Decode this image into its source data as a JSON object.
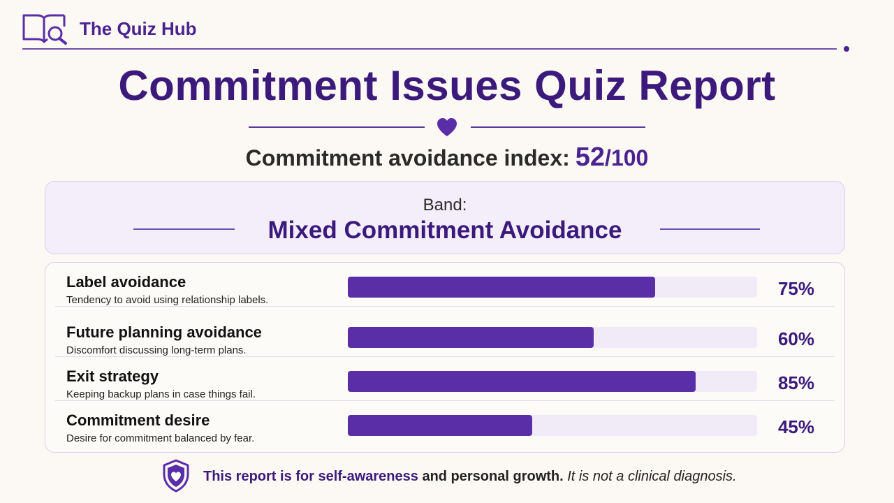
{
  "header": {
    "brand": "The Quiz Hub",
    "logo_icon": "book-magnifier-icon"
  },
  "title": "Commitment Issues Quiz Report",
  "title_icon": "heart-icon",
  "index": {
    "label": "Commitment avoidance index:",
    "score": "52",
    "denominator": "/100"
  },
  "band": {
    "label": "Band:",
    "value": "Mixed Commitment Avoidance"
  },
  "metrics": [
    {
      "name": "Label avoidance",
      "description": "Tendency to avoid using relationship labels.",
      "percent_label": "75%",
      "value": 75
    },
    {
      "name": "Future planning avoidance",
      "description": "Discomfort discussing long-term plans.",
      "percent_label": "60%",
      "value": 60
    },
    {
      "name": "Exit strategy",
      "description": "Keeping backup plans in case things fail.",
      "percent_label": "85%",
      "value": 85
    },
    {
      "name": "Commitment desire",
      "description": "Desire for commitment balanced by fear.",
      "percent_label": "45%",
      "value": 45
    }
  ],
  "footer": {
    "icon": "shield-heart-icon",
    "part1": "This report is for self-awareness",
    "part2": " and personal growth.",
    "part3": " It is not a clinical diagnosis."
  },
  "colors": {
    "accent": "#4b2391",
    "bar_fill": "#5a2ea6",
    "bar_track": "#f1ebf8",
    "background": "#fcf8f3"
  }
}
